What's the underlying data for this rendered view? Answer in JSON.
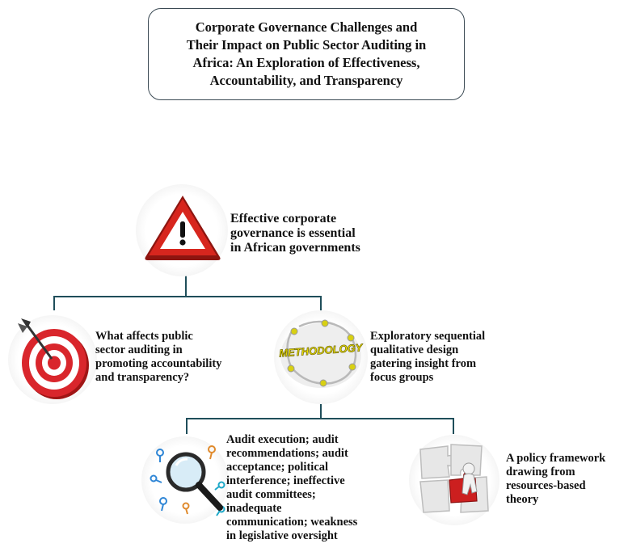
{
  "title": {
    "line1": "Corporate Governance Challenges and",
    "line2": "Their Impact on Public Sector Auditing in",
    "line3": "Africa: An Exploration of Effectiveness,",
    "line4": "Accountability, and Transparency"
  },
  "nodes": {
    "premise": {
      "icon": "warning-icon",
      "line1": "Effective corporate",
      "line2": "governance is essential",
      "line3": "in African governments"
    },
    "question": {
      "icon": "target-icon",
      "line1": "What affects public",
      "line2": "sector auditing in",
      "line3": "promoting accountability",
      "line4": "and transparency?"
    },
    "methodology": {
      "icon": "methodology-icon",
      "icon_label": "METHODOLOGY",
      "line1": "Exploratory sequential",
      "line2": "qualitative design",
      "line3": "gatering insight from",
      "line4": "focus groups"
    },
    "findings": {
      "icon": "magnifier-keys-icon",
      "line1": "Audit execution; audit",
      "line2": "recommendations; audit",
      "line3": "acceptance; political",
      "line4": "interference; ineffective",
      "line5": "audit committees;",
      "line6": "inadequate",
      "line7": "communication; weakness",
      "line8": "in legislative oversight"
    },
    "framework": {
      "icon": "puzzle-icon",
      "line1": "A policy framework",
      "line2": "drawing from",
      "line3": "resources-based",
      "line4": "theory"
    }
  },
  "colors": {
    "connector": "#1f4e5a",
    "warning_red": "#d7261e",
    "target_red": "#d9262c",
    "methodology_yellow": "#f2e400",
    "puzzle_red": "#cc1f1f"
  }
}
